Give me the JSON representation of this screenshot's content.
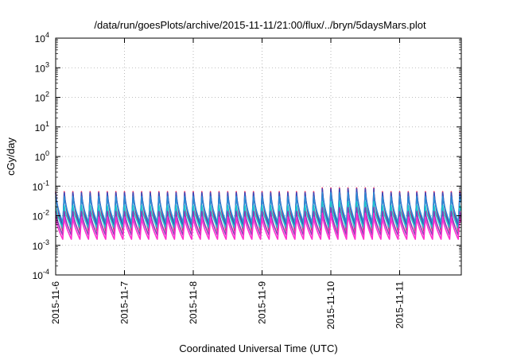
{
  "chart_data": {
    "type": "line",
    "title": "/data/run/goesPlots/archive/2015-11-11/21:00/flux/../bryn/5daysMars.plot",
    "xlabel": "Coordinated Universal Time (UTC)",
    "ylabel": "cGy/day",
    "yscale": "log",
    "ylim": [
      0.0001,
      10000
    ],
    "y_ticks": [
      {
        "base": "10",
        "exp": "-4"
      },
      {
        "base": "10",
        "exp": "-3"
      },
      {
        "base": "10",
        "exp": "-2"
      },
      {
        "base": "10",
        "exp": "-1"
      },
      {
        "base": "10",
        "exp": "0"
      },
      {
        "base": "10",
        "exp": "1"
      },
      {
        "base": "10",
        "exp": "2"
      },
      {
        "base": "10",
        "exp": "3"
      },
      {
        "base": "10",
        "exp": "4"
      }
    ],
    "xlim": [
      "2015-11-06",
      "2015-11-11 22:00"
    ],
    "x_ticks": [
      "2015-11-6",
      "2015-11-7",
      "2015-11-8",
      "2015-11-9",
      "2015-11-10",
      "2015-11-11"
    ],
    "grid": true,
    "legend": "none",
    "pattern": "sawtooth, approx. 8 cycles per day",
    "series": [
      {
        "color": "#e0245e",
        "peak": 0.065,
        "trough": 0.003
      },
      {
        "color": "#3a49b8",
        "peak": 0.06,
        "trough": 0.0045
      },
      {
        "color": "#2b8cd6",
        "peak": 0.045,
        "trough": 0.006
      },
      {
        "color": "#19c8d0",
        "peak": 0.022,
        "trough": 0.0038
      },
      {
        "color": "#8a3ab5",
        "peak": 0.014,
        "trough": 0.0022
      },
      {
        "color": "#ff2fcf",
        "peak": 0.009,
        "trough": 0.0016
      }
    ]
  }
}
